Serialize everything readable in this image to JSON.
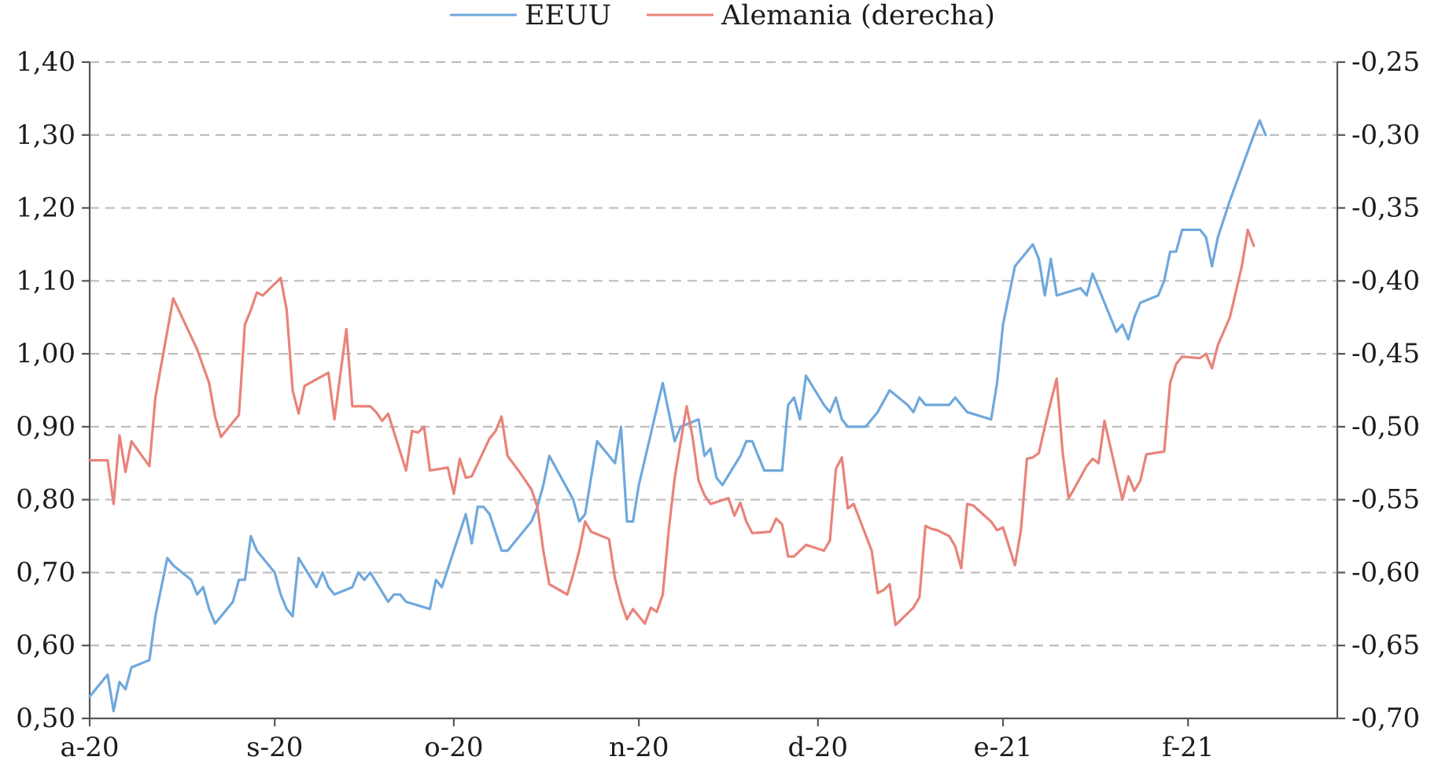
{
  "chart_data": {
    "type": "line",
    "title": "",
    "legend": {
      "placement": "top",
      "entries": [
        "EEUU",
        "Alemania (derecha)"
      ]
    },
    "grid": true,
    "x_tick_labels": [
      "a-20",
      "s-20",
      "o-20",
      "n-20",
      "d-20",
      "e-21",
      "f-21"
    ],
    "x_tick_dates": [
      "2020-08-01",
      "2020-09-01",
      "2020-10-01",
      "2020-11-01",
      "2020-12-01",
      "2021-01-01",
      "2021-02-01"
    ],
    "x_range": [
      "2020-08-01",
      "2021-02-26"
    ],
    "y_left": {
      "ylim": [
        0.5,
        1.4
      ],
      "ticks": [
        "0,50",
        "0,60",
        "0,70",
        "0,80",
        "0,90",
        "1,00",
        "1,10",
        "1,20",
        "1,30",
        "1,40"
      ]
    },
    "y_right": {
      "ylim": [
        -0.7,
        -0.25
      ],
      "ticks": [
        "-0,70",
        "-0,65",
        "-0,60",
        "-0,55",
        "-0,50",
        "-0,45",
        "-0,40",
        "-0,35",
        "-0,30",
        "-0,25"
      ]
    },
    "series": [
      {
        "name": "EEUU",
        "axis": "left",
        "color": "#6fa8dc",
        "points": [
          [
            "2020-08-01",
            0.53
          ],
          [
            "2020-08-04",
            0.56
          ],
          [
            "2020-08-05",
            0.51
          ],
          [
            "2020-08-06",
            0.55
          ],
          [
            "2020-08-07",
            0.54
          ],
          [
            "2020-08-08",
            0.57
          ],
          [
            "2020-08-11",
            0.58
          ],
          [
            "2020-08-12",
            0.64
          ],
          [
            "2020-08-13",
            0.68
          ],
          [
            "2020-08-14",
            0.72
          ],
          [
            "2020-08-15",
            0.71
          ],
          [
            "2020-08-18",
            0.69
          ],
          [
            "2020-08-19",
            0.67
          ],
          [
            "2020-08-20",
            0.68
          ],
          [
            "2020-08-21",
            0.65
          ],
          [
            "2020-08-22",
            0.63
          ],
          [
            "2020-08-25",
            0.66
          ],
          [
            "2020-08-26",
            0.69
          ],
          [
            "2020-08-27",
            0.69
          ],
          [
            "2020-08-28",
            0.75
          ],
          [
            "2020-08-29",
            0.73
          ],
          [
            "2020-09-01",
            0.7
          ],
          [
            "2020-09-02",
            0.67
          ],
          [
            "2020-09-03",
            0.65
          ],
          [
            "2020-09-04",
            0.64
          ],
          [
            "2020-09-05",
            0.72
          ],
          [
            "2020-09-08",
            0.68
          ],
          [
            "2020-09-09",
            0.7
          ],
          [
            "2020-09-10",
            0.68
          ],
          [
            "2020-09-11",
            0.67
          ],
          [
            "2020-09-14",
            0.68
          ],
          [
            "2020-09-15",
            0.7
          ],
          [
            "2020-09-16",
            0.69
          ],
          [
            "2020-09-17",
            0.7
          ],
          [
            "2020-09-20",
            0.66
          ],
          [
            "2020-09-21",
            0.67
          ],
          [
            "2020-09-22",
            0.67
          ],
          [
            "2020-09-23",
            0.66
          ],
          [
            "2020-09-27",
            0.65
          ],
          [
            "2020-09-28",
            0.69
          ],
          [
            "2020-09-29",
            0.68
          ],
          [
            "2020-10-01",
            0.73
          ],
          [
            "2020-10-03",
            0.78
          ],
          [
            "2020-10-04",
            0.74
          ],
          [
            "2020-10-05",
            0.79
          ],
          [
            "2020-10-06",
            0.79
          ],
          [
            "2020-10-07",
            0.78
          ],
          [
            "2020-10-09",
            0.73
          ],
          [
            "2020-10-10",
            0.73
          ],
          [
            "2020-10-12",
            0.75
          ],
          [
            "2020-10-14",
            0.77
          ],
          [
            "2020-10-15",
            0.79
          ],
          [
            "2020-10-16",
            0.82
          ],
          [
            "2020-10-17",
            0.86
          ],
          [
            "2020-10-21",
            0.8
          ],
          [
            "2020-10-22",
            0.77
          ],
          [
            "2020-10-23",
            0.78
          ],
          [
            "2020-10-25",
            0.88
          ],
          [
            "2020-10-28",
            0.85
          ],
          [
            "2020-10-29",
            0.9
          ],
          [
            "2020-10-30",
            0.77
          ],
          [
            "2020-10-31",
            0.77
          ],
          [
            "2020-11-01",
            0.82
          ],
          [
            "2020-11-05",
            0.96
          ],
          [
            "2020-11-07",
            0.88
          ],
          [
            "2020-11-08",
            0.9
          ],
          [
            "2020-11-11",
            0.91
          ],
          [
            "2020-11-12",
            0.86
          ],
          [
            "2020-11-13",
            0.87
          ],
          [
            "2020-11-14",
            0.83
          ],
          [
            "2020-11-15",
            0.82
          ],
          [
            "2020-11-18",
            0.86
          ],
          [
            "2020-11-19",
            0.88
          ],
          [
            "2020-11-20",
            0.88
          ],
          [
            "2020-11-22",
            0.84
          ],
          [
            "2020-11-25",
            0.84
          ],
          [
            "2020-11-26",
            0.93
          ],
          [
            "2020-11-27",
            0.94
          ],
          [
            "2020-11-28",
            0.91
          ],
          [
            "2020-11-29",
            0.97
          ],
          [
            "2020-12-02",
            0.93
          ],
          [
            "2020-12-03",
            0.92
          ],
          [
            "2020-12-04",
            0.94
          ],
          [
            "2020-12-05",
            0.91
          ],
          [
            "2020-12-06",
            0.9
          ],
          [
            "2020-12-09",
            0.9
          ],
          [
            "2020-12-10",
            0.91
          ],
          [
            "2020-12-11",
            0.92
          ],
          [
            "2020-12-13",
            0.95
          ],
          [
            "2020-12-16",
            0.93
          ],
          [
            "2020-12-17",
            0.92
          ],
          [
            "2020-12-18",
            0.94
          ],
          [
            "2020-12-19",
            0.93
          ],
          [
            "2020-12-23",
            0.93
          ],
          [
            "2020-12-24",
            0.94
          ],
          [
            "2020-12-25",
            0.93
          ],
          [
            "2020-12-26",
            0.92
          ],
          [
            "2020-12-30",
            0.91
          ],
          [
            "2020-12-31",
            0.96
          ],
          [
            "2021-01-01",
            1.04
          ],
          [
            "2021-01-03",
            1.12
          ],
          [
            "2021-01-06",
            1.15
          ],
          [
            "2021-01-07",
            1.13
          ],
          [
            "2021-01-08",
            1.08
          ],
          [
            "2021-01-09",
            1.13
          ],
          [
            "2021-01-10",
            1.08
          ],
          [
            "2021-01-14",
            1.09
          ],
          [
            "2021-01-15",
            1.08
          ],
          [
            "2021-01-16",
            1.11
          ],
          [
            "2021-01-20",
            1.03
          ],
          [
            "2021-01-21",
            1.04
          ],
          [
            "2021-01-22",
            1.02
          ],
          [
            "2021-01-23",
            1.05
          ],
          [
            "2021-01-24",
            1.07
          ],
          [
            "2021-01-27",
            1.08
          ],
          [
            "2021-01-28",
            1.1
          ],
          [
            "2021-01-29",
            1.14
          ],
          [
            "2021-01-30",
            1.14
          ],
          [
            "2021-01-31",
            1.17
          ],
          [
            "2021-02-03",
            1.17
          ],
          [
            "2021-02-04",
            1.16
          ],
          [
            "2021-02-05",
            1.12
          ],
          [
            "2021-02-06",
            1.16
          ],
          [
            "2021-02-08",
            1.21
          ],
          [
            "2021-02-12",
            1.3
          ],
          [
            "2021-02-13",
            1.32
          ],
          [
            "2021-02-14",
            1.3
          ]
        ]
      },
      {
        "name": "Alemania (derecha)",
        "axis": "right",
        "color": "#e8837a",
        "points": [
          [
            "2020-08-01",
            -0.523
          ],
          [
            "2020-08-04",
            -0.523
          ],
          [
            "2020-08-05",
            -0.553
          ],
          [
            "2020-08-06",
            -0.506
          ],
          [
            "2020-08-07",
            -0.531
          ],
          [
            "2020-08-08",
            -0.51
          ],
          [
            "2020-08-11",
            -0.527
          ],
          [
            "2020-08-12",
            -0.48
          ],
          [
            "2020-08-15",
            -0.412
          ],
          [
            "2020-08-19",
            -0.447
          ],
          [
            "2020-08-21",
            -0.47
          ],
          [
            "2020-08-22",
            -0.493
          ],
          [
            "2020-08-23",
            -0.507
          ],
          [
            "2020-08-26",
            -0.492
          ],
          [
            "2020-08-27",
            -0.43
          ],
          [
            "2020-08-28",
            -0.42
          ],
          [
            "2020-08-29",
            -0.408
          ],
          [
            "2020-08-30",
            -0.41
          ],
          [
            "2020-09-02",
            -0.398
          ],
          [
            "2020-09-03",
            -0.42
          ],
          [
            "2020-09-04",
            -0.475
          ],
          [
            "2020-09-05",
            -0.491
          ],
          [
            "2020-09-06",
            -0.472
          ],
          [
            "2020-09-10",
            -0.463
          ],
          [
            "2020-09-11",
            -0.495
          ],
          [
            "2020-09-13",
            -0.433
          ],
          [
            "2020-09-14",
            -0.486
          ],
          [
            "2020-09-17",
            -0.486
          ],
          [
            "2020-09-18",
            -0.49
          ],
          [
            "2020-09-19",
            -0.496
          ],
          [
            "2020-09-20",
            -0.491
          ],
          [
            "2020-09-23",
            -0.53
          ],
          [
            "2020-09-24",
            -0.503
          ],
          [
            "2020-09-25",
            -0.504
          ],
          [
            "2020-09-26",
            -0.5
          ],
          [
            "2020-09-27",
            -0.53
          ],
          [
            "2020-09-30",
            -0.528
          ],
          [
            "2020-10-01",
            -0.546
          ],
          [
            "2020-10-02",
            -0.522
          ],
          [
            "2020-10-03",
            -0.535
          ],
          [
            "2020-10-04",
            -0.534
          ],
          [
            "2020-10-07",
            -0.508
          ],
          [
            "2020-10-08",
            -0.503
          ],
          [
            "2020-10-09",
            -0.493
          ],
          [
            "2020-10-10",
            -0.52
          ],
          [
            "2020-10-12",
            -0.531
          ],
          [
            "2020-10-14",
            -0.543
          ],
          [
            "2020-10-15",
            -0.555
          ],
          [
            "2020-10-16",
            -0.585
          ],
          [
            "2020-10-17",
            -0.608
          ],
          [
            "2020-10-20",
            -0.615
          ],
          [
            "2020-10-21",
            -0.601
          ],
          [
            "2020-10-22",
            -0.585
          ],
          [
            "2020-10-23",
            -0.565
          ],
          [
            "2020-10-24",
            -0.572
          ],
          [
            "2020-10-27",
            -0.577
          ],
          [
            "2020-10-28",
            -0.604
          ],
          [
            "2020-10-29",
            -0.62
          ],
          [
            "2020-10-30",
            -0.632
          ],
          [
            "2020-10-31",
            -0.625
          ],
          [
            "2020-11-02",
            -0.635
          ],
          [
            "2020-11-03",
            -0.624
          ],
          [
            "2020-11-04",
            -0.627
          ],
          [
            "2020-11-05",
            -0.615
          ],
          [
            "2020-11-06",
            -0.571
          ],
          [
            "2020-11-07",
            -0.535
          ],
          [
            "2020-11-09",
            -0.486
          ],
          [
            "2020-11-10",
            -0.507
          ],
          [
            "2020-11-11",
            -0.537
          ],
          [
            "2020-11-12",
            -0.547
          ],
          [
            "2020-11-13",
            -0.553
          ],
          [
            "2020-11-16",
            -0.549
          ],
          [
            "2020-11-17",
            -0.561
          ],
          [
            "2020-11-18",
            -0.552
          ],
          [
            "2020-11-19",
            -0.565
          ],
          [
            "2020-11-20",
            -0.573
          ],
          [
            "2020-11-23",
            -0.572
          ],
          [
            "2020-11-24",
            -0.563
          ],
          [
            "2020-11-25",
            -0.567
          ],
          [
            "2020-11-26",
            -0.589
          ],
          [
            "2020-11-27",
            -0.589
          ],
          [
            "2020-11-29",
            -0.581
          ],
          [
            "2020-12-02",
            -0.585
          ],
          [
            "2020-12-03",
            -0.578
          ],
          [
            "2020-12-04",
            -0.529
          ],
          [
            "2020-12-05",
            -0.521
          ],
          [
            "2020-12-06",
            -0.556
          ],
          [
            "2020-12-07",
            -0.553
          ],
          [
            "2020-12-10",
            -0.585
          ],
          [
            "2020-12-11",
            -0.614
          ],
          [
            "2020-12-12",
            -0.612
          ],
          [
            "2020-12-13",
            -0.608
          ],
          [
            "2020-12-14",
            -0.636
          ],
          [
            "2020-12-17",
            -0.624
          ],
          [
            "2020-12-18",
            -0.617
          ],
          [
            "2020-12-19",
            -0.568
          ],
          [
            "2020-12-20",
            -0.57
          ],
          [
            "2020-12-21",
            -0.571
          ],
          [
            "2020-12-23",
            -0.575
          ],
          [
            "2020-12-24",
            -0.582
          ],
          [
            "2020-12-25",
            -0.597
          ],
          [
            "2020-12-26",
            -0.553
          ],
          [
            "2020-12-27",
            -0.554
          ],
          [
            "2020-12-30",
            -0.565
          ],
          [
            "2020-12-31",
            -0.571
          ],
          [
            "2021-01-01",
            -0.569
          ],
          [
            "2021-01-03",
            -0.595
          ],
          [
            "2021-01-04",
            -0.571
          ],
          [
            "2021-01-05",
            -0.522
          ],
          [
            "2021-01-06",
            -0.521
          ],
          [
            "2021-01-07",
            -0.518
          ],
          [
            "2021-01-08",
            -0.5
          ],
          [
            "2021-01-09",
            -0.483
          ],
          [
            "2021-01-10",
            -0.467
          ],
          [
            "2021-01-11",
            -0.518
          ],
          [
            "2021-01-12",
            -0.549
          ],
          [
            "2021-01-13",
            -0.542
          ],
          [
            "2021-01-15",
            -0.527
          ],
          [
            "2021-01-16",
            -0.522
          ],
          [
            "2021-01-17",
            -0.525
          ],
          [
            "2021-01-18",
            -0.496
          ],
          [
            "2021-01-21",
            -0.55
          ],
          [
            "2021-01-22",
            -0.534
          ],
          [
            "2021-01-23",
            -0.544
          ],
          [
            "2021-01-24",
            -0.537
          ],
          [
            "2021-01-25",
            -0.519
          ],
          [
            "2021-01-28",
            -0.517
          ],
          [
            "2021-01-29",
            -0.47
          ],
          [
            "2021-01-30",
            -0.457
          ],
          [
            "2021-01-31",
            -0.452
          ],
          [
            "2021-02-03",
            -0.453
          ],
          [
            "2021-02-04",
            -0.45
          ],
          [
            "2021-02-05",
            -0.46
          ],
          [
            "2021-02-06",
            -0.444
          ],
          [
            "2021-02-08",
            -0.425
          ],
          [
            "2021-02-10",
            -0.39
          ],
          [
            "2021-02-11",
            -0.365
          ],
          [
            "2021-02-12",
            -0.376
          ]
        ]
      }
    ]
  }
}
